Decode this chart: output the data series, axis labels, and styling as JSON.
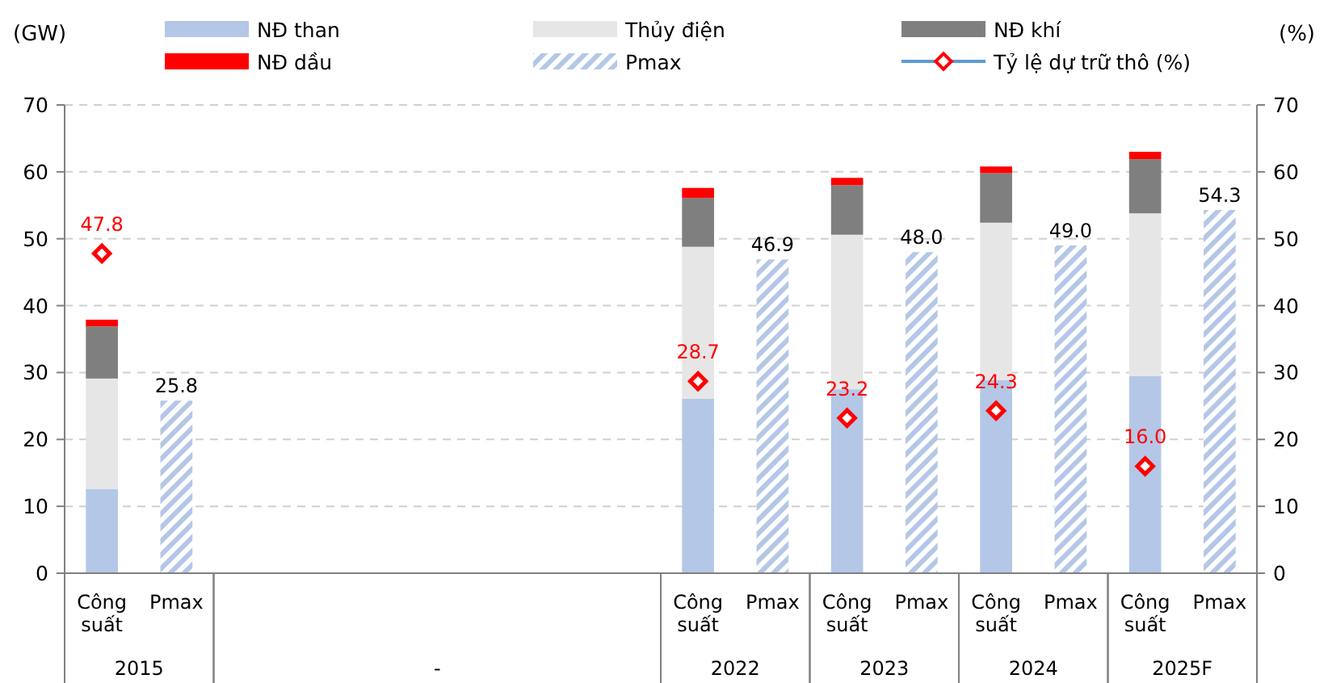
{
  "chart_data": {
    "type": "bar",
    "ylabel": "(GW)",
    "y2label": "(%)",
    "categories": [
      "Công suất",
      "Pmax",
      null,
      null,
      null,
      null,
      null,
      null,
      "Công suất",
      "Pmax",
      "Công suất",
      "Pmax",
      "Công suất",
      "Pmax",
      "Công suất",
      "Pmax"
    ],
    "annotations": [
      "2015",
      "-",
      "2022",
      "2023",
      "2024",
      "2025F"
    ],
    "stacked": true,
    "ylim": [
      0,
      70
    ],
    "yticks": [
      0,
      10,
      20,
      30,
      40,
      50,
      60,
      70
    ],
    "y2lim": [
      0,
      70
    ],
    "y2ticks": [
      0,
      10,
      20,
      30,
      40,
      50,
      60,
      70
    ],
    "grid": "y",
    "legend": "top",
    "series": [
      {
        "name": "NĐ than",
        "color": "#b4c7e7",
        "values": [
          12.6,
          null,
          null,
          null,
          null,
          null,
          null,
          null,
          26.1,
          null,
          27.5,
          null,
          28.9,
          null,
          29.5,
          null
        ]
      },
      {
        "name": "Thủy điện",
        "color": "#e7e6e6",
        "values": [
          16.5,
          null,
          null,
          null,
          null,
          null,
          null,
          null,
          22.7,
          null,
          23.1,
          null,
          23.5,
          null,
          24.3,
          null
        ]
      },
      {
        "name": "NĐ khí",
        "color": "#7f7f7f",
        "values": [
          7.8,
          null,
          null,
          null,
          null,
          null,
          null,
          null,
          7.3,
          null,
          7.4,
          null,
          7.4,
          null,
          8.1,
          null
        ]
      },
      {
        "name": "NĐ dầu",
        "color": "#ff0000",
        "values": [
          1.0,
          null,
          null,
          null,
          null,
          null,
          null,
          null,
          1.5,
          null,
          1.1,
          null,
          1.0,
          null,
          1.1,
          null
        ]
      },
      {
        "name": "Pmax",
        "color": "#b4c7e7",
        "values": [
          null,
          25.8,
          null,
          null,
          null,
          null,
          null,
          null,
          null,
          46.9,
          null,
          48.0,
          null,
          49.0,
          null,
          54.3
        ],
        "value_labels": [
          null,
          "25.8",
          null,
          null,
          null,
          null,
          null,
          null,
          null,
          "46.9",
          null,
          "48.0",
          null,
          "49.0",
          null,
          "54.3"
        ]
      },
      {
        "name": "Tỷ lệ dự trữ thô (%)",
        "type": "scatter",
        "axis": "y2",
        "marker": "diamond",
        "color": "#ff0000",
        "values": [
          47.8,
          null,
          null,
          null,
          null,
          null,
          null,
          null,
          28.7,
          null,
          23.2,
          null,
          24.3,
          null,
          16.0,
          null
        ],
        "value_labels": [
          "47.8",
          null,
          null,
          null,
          null,
          null,
          null,
          null,
          "28.7",
          null,
          "23.2",
          null,
          "24.3",
          null,
          "16.0",
          null
        ]
      }
    ]
  }
}
